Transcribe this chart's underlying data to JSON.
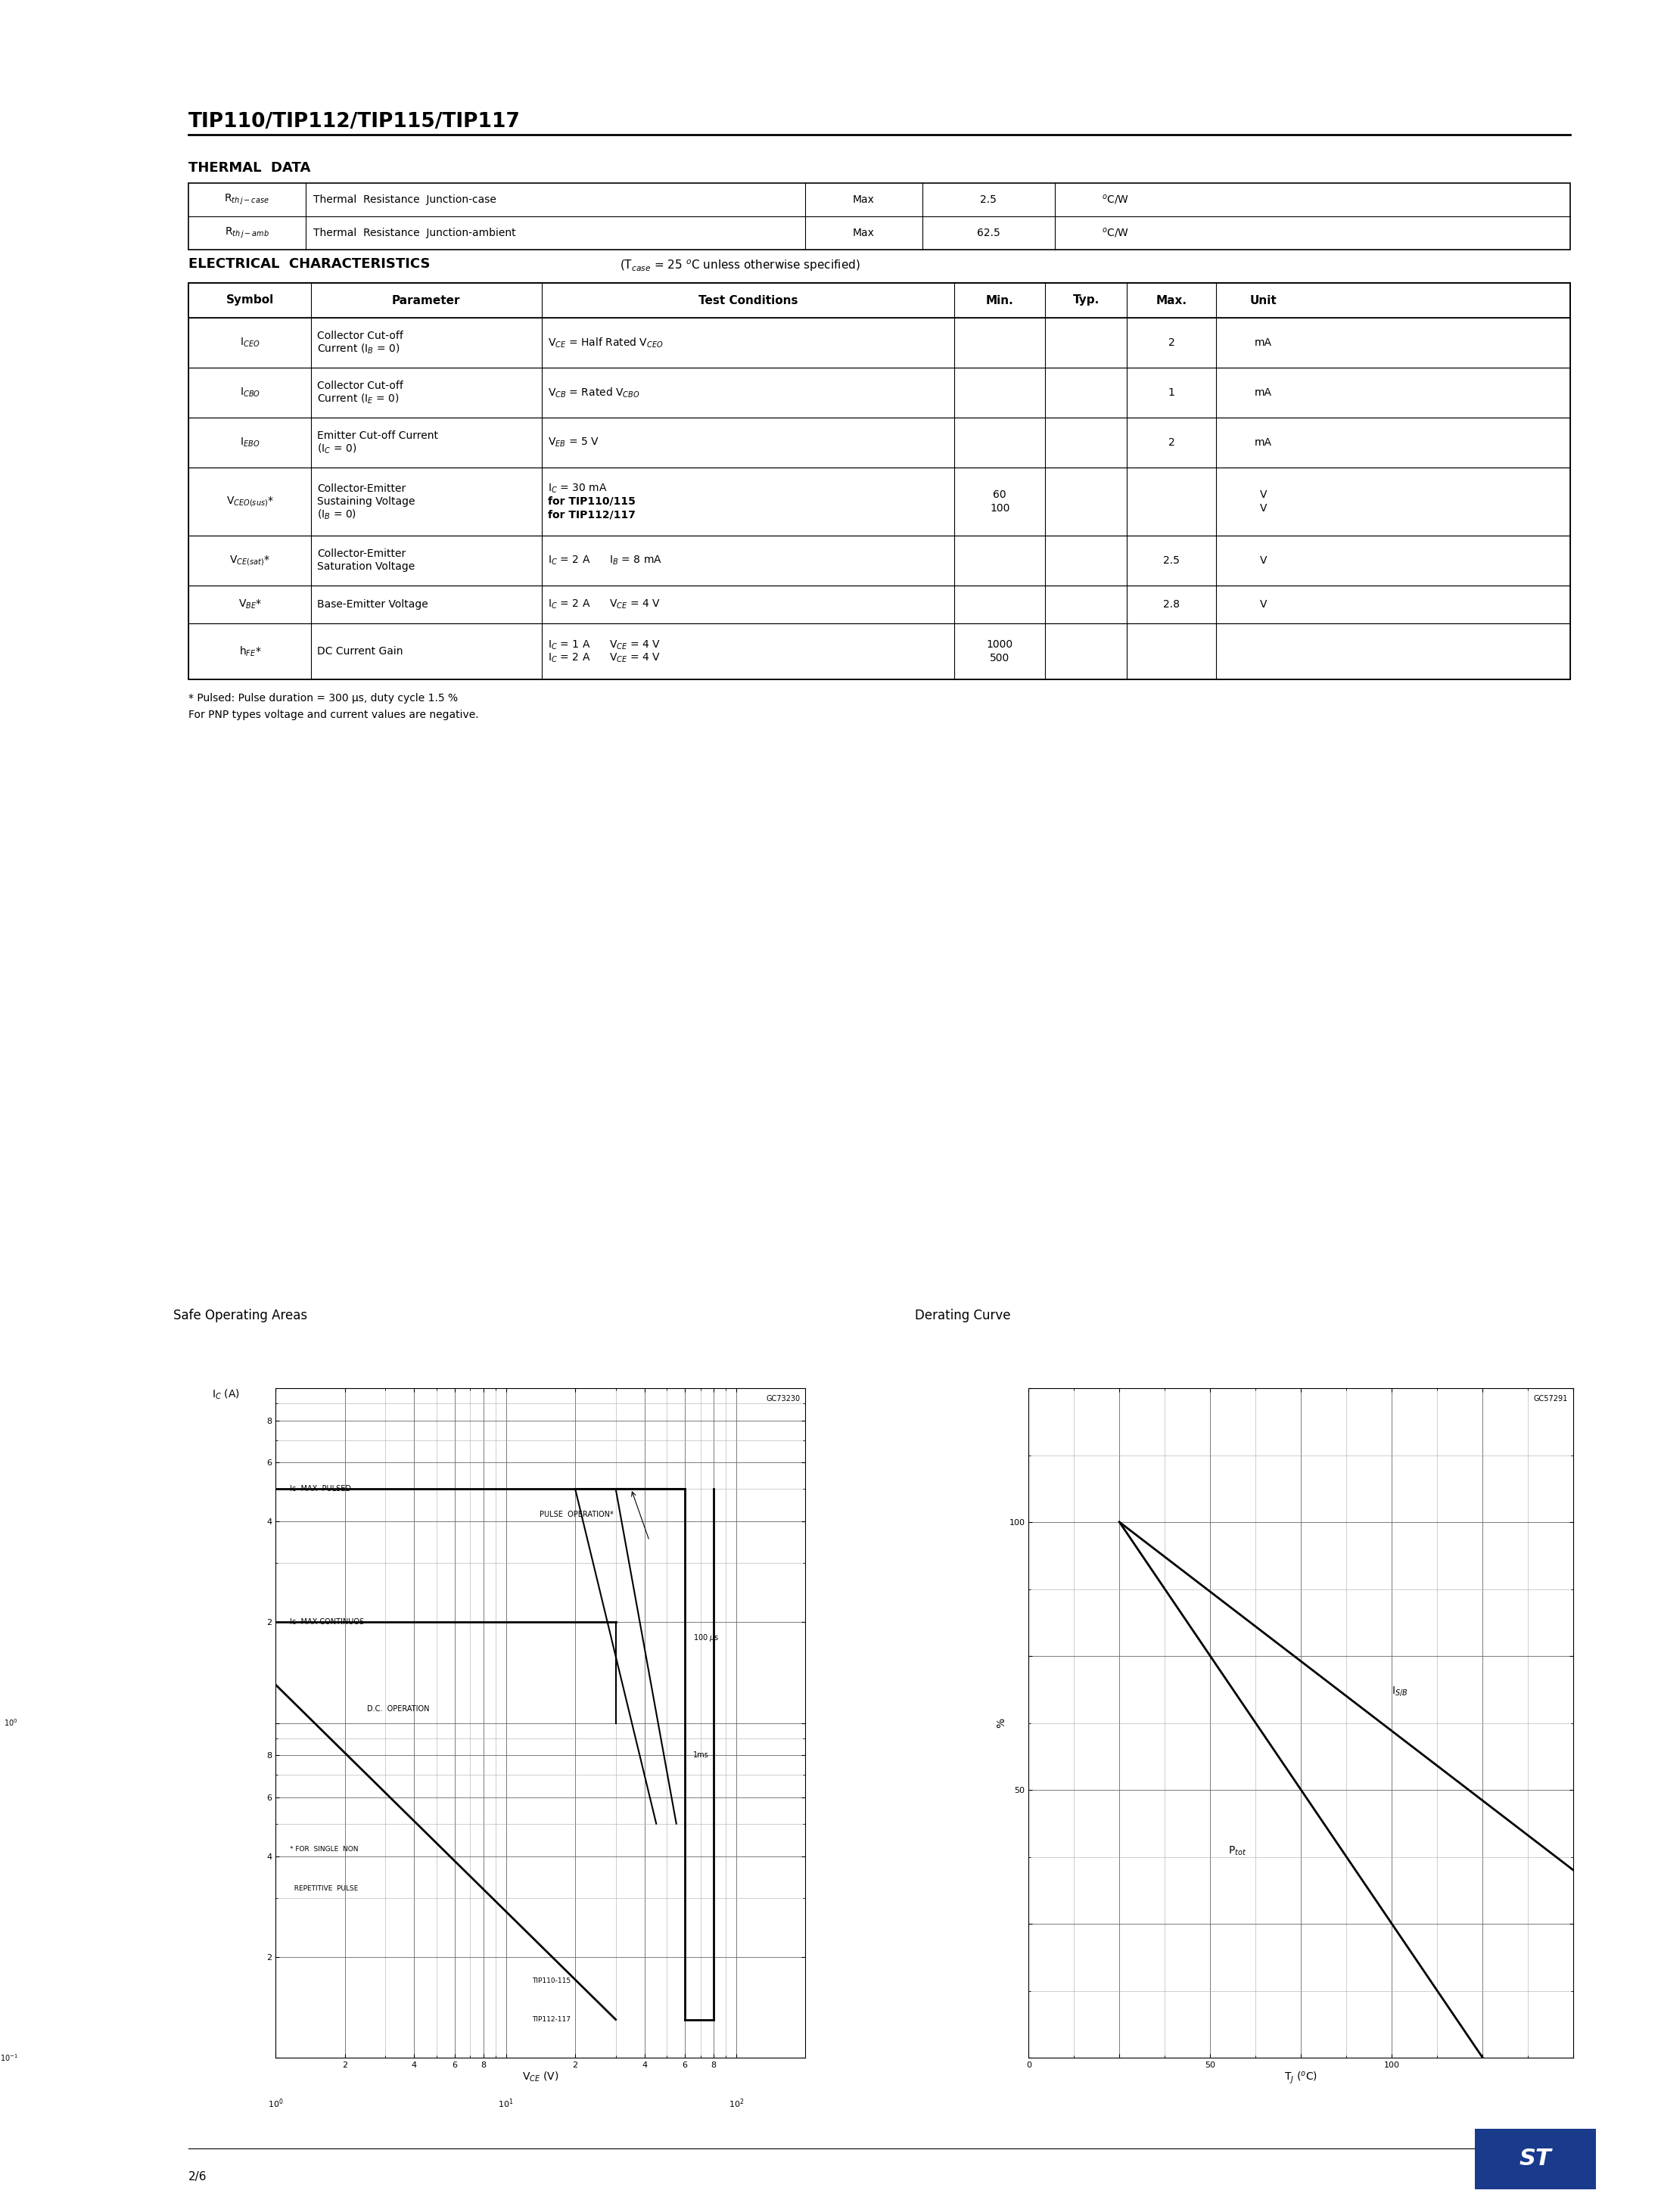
{
  "title": "TIP110/TIP112/TIP115/TIP117",
  "page_num": "2/6",
  "bg_color": "#ffffff",
  "thermal_title": "THERMAL  DATA",
  "elec_title": "ELECTRICAL  CHARACTERISTICS",
  "graph1_title": "Safe Operating Areas",
  "graph2_title": "Derating Curve",
  "graph1_code": "GC73230",
  "graph2_code": "GC57291",
  "footnote1": "* Pulsed: Pulse duration = 300 μs, duty cycle 1.5 %",
  "footnote2": "For PNP types voltage and current values are negative."
}
